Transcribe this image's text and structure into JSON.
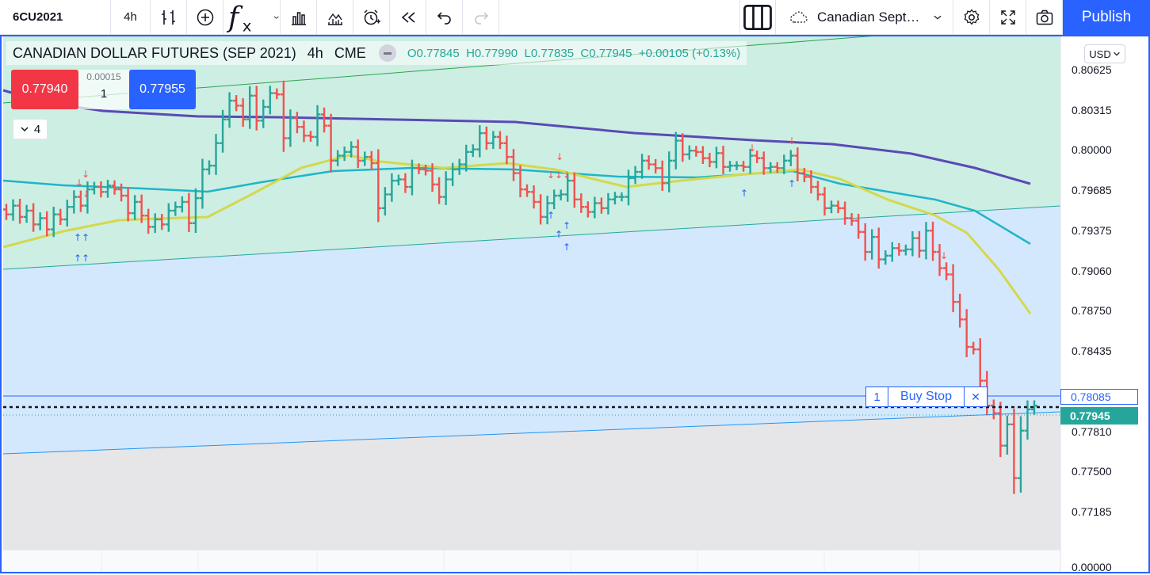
{
  "toolbar": {
    "symbol": "6CU2021",
    "interval": "4h",
    "layout_name": "Canadian Sept…",
    "publish_label": "Publish",
    "icons": [
      "bar-style-icon",
      "compare-plus-icon",
      "indicators-fx-icon",
      "chevron-down-icon",
      "templates-icon",
      "chart-properties-icon",
      "alert-icon",
      "replay-icon",
      "undo-icon",
      "redo-icon",
      "layout-icon",
      "cloud-icon",
      "settings-icon",
      "fullscreen-icon",
      "camera-icon"
    ]
  },
  "legend": {
    "title": "CANADIAN DOLLAR FUTURES (SEP 2021)",
    "interval": "4h",
    "exchange": "CME",
    "open_label": "O",
    "open": "0.77845",
    "high_label": "H",
    "high": "0.77990",
    "low_label": "L",
    "low": "0.77835",
    "close_label": "C",
    "close": "0.77945",
    "change": "+0.00105 (+0.13%)"
  },
  "trade": {
    "sell_price": "0.77940",
    "buy_price": "0.77955",
    "spread": "0.00015",
    "quantity": "1"
  },
  "collapse": {
    "count": "4"
  },
  "price_axis": {
    "currency": "USD",
    "ticks": [
      "0.80625",
      "0.80315",
      "0.80000",
      "0.79685",
      "0.79375",
      "0.79060",
      "0.78750",
      "0.78435",
      "0.77810",
      "0.77500",
      "0.77185",
      "0.00000"
    ],
    "order_price": "0.78085",
    "last_price": "0.77945"
  },
  "order": {
    "quantity": "1",
    "type": "Buy Stop",
    "close_symbol": "✕"
  },
  "colors": {
    "up": "#26a69a",
    "down": "#ef5350",
    "ma_fast": "#d4d84c",
    "ma_mid": "#1fb5c8",
    "ma_slow": "#5a4ab5",
    "zone_green": "#cdeee3",
    "zone_blue": "#d3e8fc",
    "zone_gray": "#e6e6e8",
    "accent": "#2962ff"
  },
  "chart_data": {
    "type": "ohlc",
    "ylim": [
      0.77,
      0.807
    ],
    "closes": [
      0.7948,
      0.7955,
      0.7946,
      0.7951,
      0.794,
      0.7945,
      0.7936,
      0.7948,
      0.7944,
      0.7954,
      0.7962,
      0.7955,
      0.7968,
      0.797,
      0.7966,
      0.7971,
      0.7968,
      0.7963,
      0.7949,
      0.7958,
      0.7947,
      0.7938,
      0.7944,
      0.794,
      0.7951,
      0.7954,
      0.7958,
      0.7941,
      0.7961,
      0.7984,
      0.7987,
      0.8005,
      0.8024,
      0.8039,
      0.8035,
      0.8024,
      0.8043,
      0.8023,
      0.8034,
      0.8045,
      0.8044,
      0.8009,
      0.8025,
      0.8018,
      0.8011,
      0.801,
      0.8028,
      0.8019,
      0.7991,
      0.7995,
      0.7998,
      0.8002,
      0.7991,
      0.7994,
      0.7989,
      0.7953,
      0.7964,
      0.7975,
      0.7976,
      0.797,
      0.7985,
      0.7984,
      0.7983,
      0.7972,
      0.7962,
      0.7976,
      0.7984,
      0.7988,
      0.7998,
      0.8,
      0.8013,
      0.8005,
      0.801,
      0.8005,
      0.7994,
      0.7981,
      0.7968,
      0.7966,
      0.7958,
      0.7946,
      0.7957,
      0.7963,
      0.7964,
      0.7975,
      0.796,
      0.7954,
      0.795,
      0.7957,
      0.7953,
      0.796,
      0.7962,
      0.7962,
      0.7977,
      0.7982,
      0.7991,
      0.7988,
      0.7985,
      0.7973,
      0.7991,
      0.8007,
      0.7996,
      0.7999,
      0.7998,
      0.7993,
      0.799,
      0.7997,
      0.7986,
      0.7987,
      0.7987,
      0.7986,
      0.7995,
      0.7993,
      0.7985,
      0.7986,
      0.7985,
      0.7991,
      0.7995,
      0.7981,
      0.7978,
      0.797,
      0.7964,
      0.7953,
      0.7955,
      0.7953,
      0.7945,
      0.7943,
      0.7934,
      0.7918,
      0.793,
      0.7912,
      0.7915,
      0.7921,
      0.7919,
      0.792,
      0.7929,
      0.7919,
      0.7935,
      0.7918,
      0.7905,
      0.79,
      0.7878,
      0.7864,
      0.7842,
      0.784,
      0.7815,
      0.7795,
      0.7789,
      0.7763,
      0.778,
      0.7737,
      0.7775,
      0.7792,
      0.7795
    ]
  }
}
